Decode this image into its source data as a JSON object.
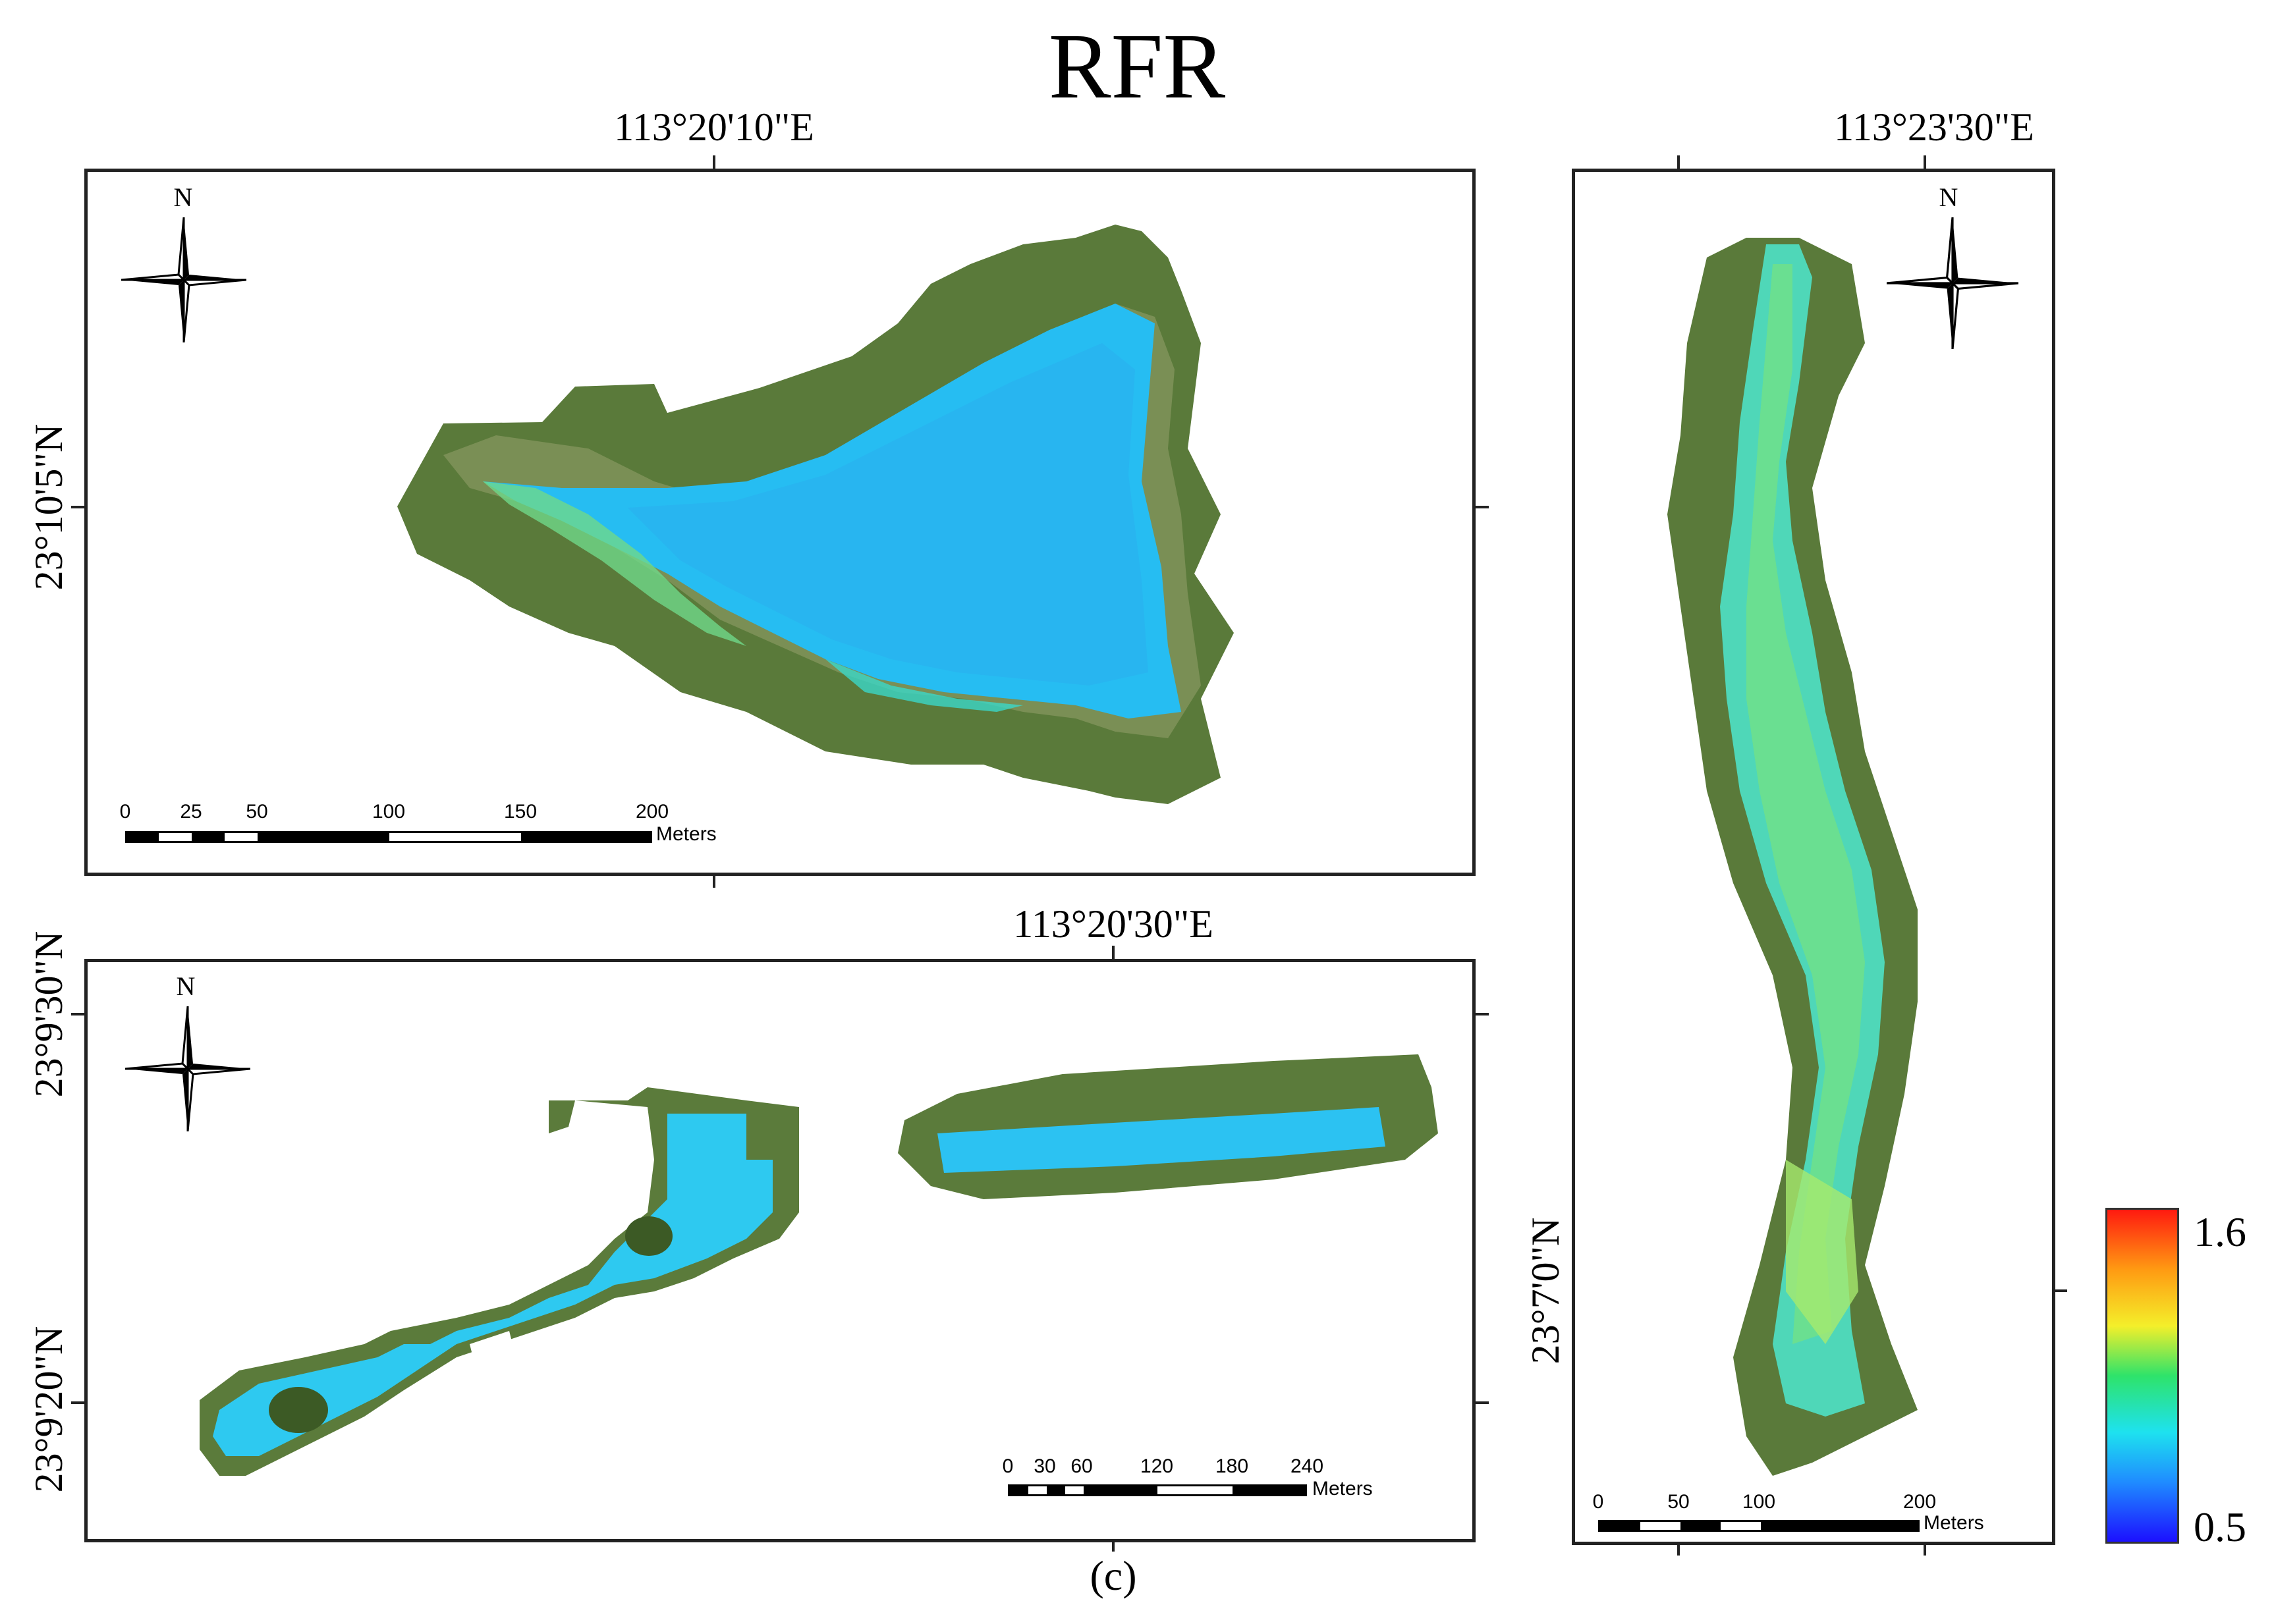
{
  "title": "RFR",
  "caption": "(c)",
  "north_arrow": {
    "label": "N",
    "icon": "compass-rose-icon"
  },
  "panels": {
    "top_left": {
      "lon_label": "113°20'10\"E",
      "lat_label": "23°10'5\"N",
      "scale": {
        "ticks": [
          "0",
          "25",
          "50",
          "100",
          "150",
          "200"
        ],
        "unit": "Meters"
      }
    },
    "bottom_left": {
      "lon_label": "113°20'30\"E",
      "lat_label_top": "23°9'30\"N",
      "lat_label_bottom": "23°9'20\"N",
      "scale": {
        "ticks": [
          "0",
          "30",
          "60",
          "120",
          "180",
          "240"
        ],
        "unit": "Meters"
      }
    },
    "right": {
      "lon_label": "113°23'30\"E",
      "lat_label": "23°7'0\"N",
      "scale": {
        "ticks": [
          "0",
          "50",
          "100",
          "200"
        ],
        "unit": "Meters"
      }
    }
  },
  "legend": {
    "max": "1.6",
    "min": "0.5",
    "colors": [
      "#1c10ff",
      "#1f8cff",
      "#1ee2ef",
      "#2ee36a",
      "#f4ef2a",
      "#ff9a12",
      "#ff1a10"
    ]
  },
  "colors": {
    "water_low": "#22b8f0",
    "water_mid": "#2fd6ea",
    "water_high": "#7de87a",
    "vegetation": "#4a6b2e"
  }
}
